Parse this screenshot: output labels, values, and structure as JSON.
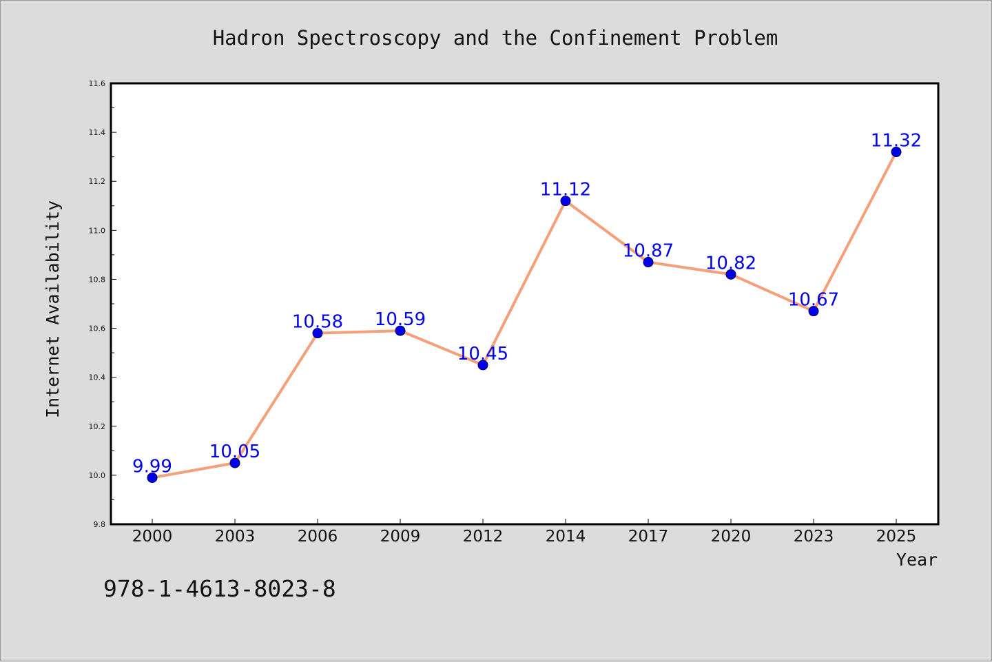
{
  "chart_data": {
    "type": "line",
    "title": "Hadron Spectroscopy and the Confinement Problem",
    "xlabel": "Year",
    "ylabel": "Internet Availability",
    "categories": [
      "2000",
      "2003",
      "2006",
      "2009",
      "2012",
      "2014",
      "2017",
      "2020",
      "2023",
      "2025"
    ],
    "series": [
      {
        "values": [
          9.99,
          10.05,
          10.58,
          10.59,
          10.45,
          11.12,
          10.87,
          10.82,
          10.67,
          11.32
        ],
        "data_labels": [
          "9.99",
          "10.05",
          "10.58",
          "10.59",
          "10.45",
          "11.12",
          "10.87",
          "10.82",
          "10.67",
          "11.32"
        ]
      }
    ],
    "ylim": [
      9.8,
      11.6
    ],
    "yticks": [
      "9.8",
      "10.0",
      "10.2",
      "10.4",
      "10.6",
      "10.8",
      "11.0",
      "11.2",
      "11.4",
      "11.6"
    ],
    "grid": false,
    "colors": {
      "line": "#f4a07a",
      "marker": "#0000ee",
      "label": "#0000ee",
      "background": "#dcdcdc",
      "plot_area": "#ffffff"
    }
  },
  "footer": {
    "isbn": "978-1-4613-8023-8"
  }
}
